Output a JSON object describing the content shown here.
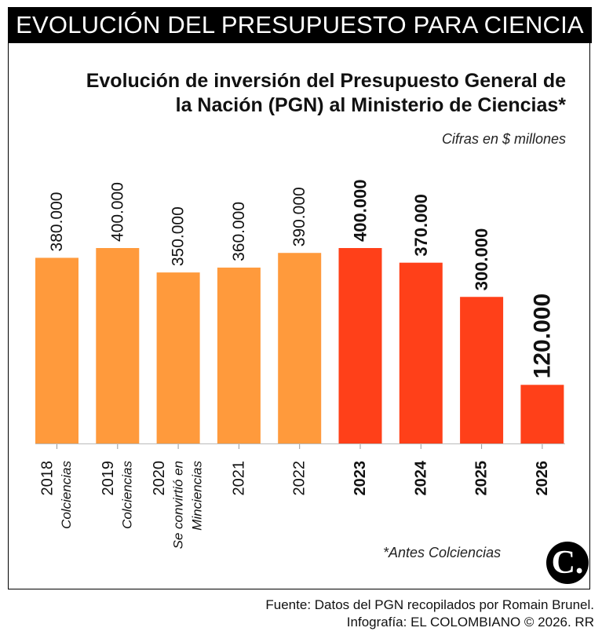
{
  "banner": "EVOLUCIÓN DEL PRESUPUESTO PARA CIENCIA",
  "chart_data": {
    "type": "bar",
    "title_lines": [
      "Evolución de inversión del Presupuesto General de",
      "la Nación (PGN) al Ministerio de Ciencias*"
    ],
    "subtitle": "Cifras en $ millones",
    "categories": [
      "2018",
      "2019",
      "2020",
      "2021",
      "2022",
      "2023",
      "2024",
      "2025",
      "2026"
    ],
    "category_notes": [
      [
        "Colciencias"
      ],
      [
        "Colciencias"
      ],
      [
        "Se convirtió en",
        "Minciencias"
      ],
      [],
      [],
      [],
      [],
      [],
      []
    ],
    "values": [
      380000,
      400000,
      350000,
      360000,
      390000,
      400000,
      370000,
      300000,
      120000
    ],
    "value_labels": [
      "380.000",
      "400.000",
      "350.000",
      "360.000",
      "390.000",
      "400.000",
      "370.000",
      "300.000",
      "120.000"
    ],
    "highlight": [
      false,
      false,
      false,
      false,
      false,
      true,
      true,
      true,
      true
    ],
    "ylim": [
      0,
      400000
    ],
    "colors": {
      "orange": "#FF9A3C",
      "red": "#FF4019"
    }
  },
  "note": "*Antes Colciencias",
  "logo": "C.",
  "source_lines": [
    "Fuente: Datos del PGN recopilados por Romain Brunel.",
    "Infografía: EL COLOMBIANO © 2026. RR"
  ]
}
